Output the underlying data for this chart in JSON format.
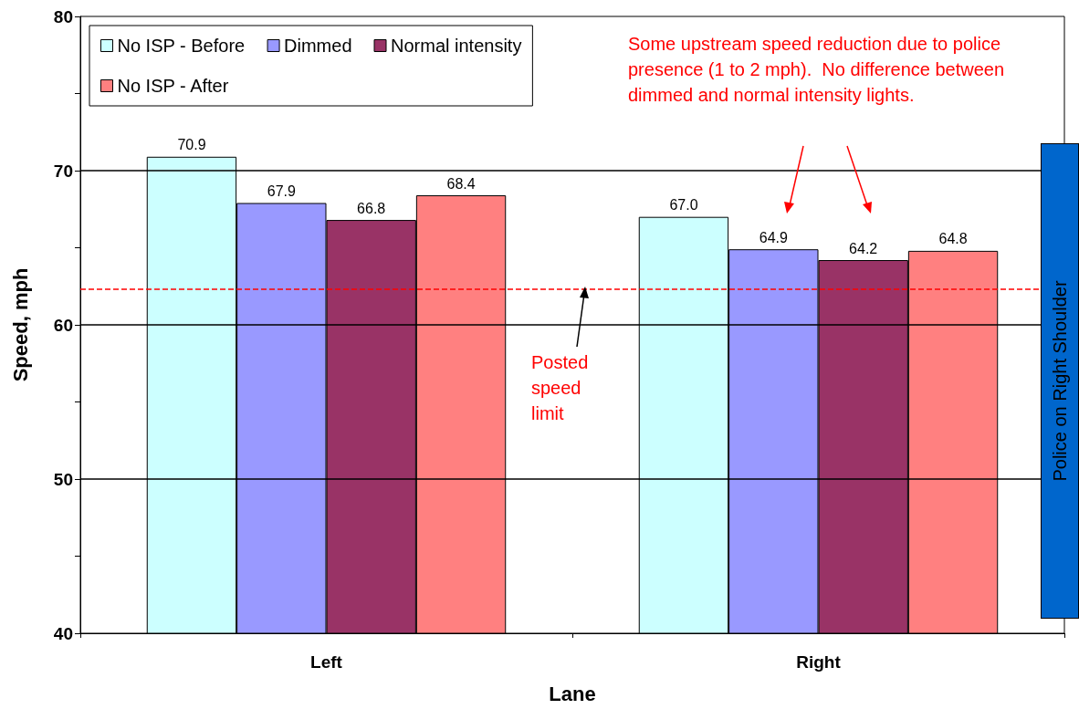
{
  "chart_data": {
    "type": "bar",
    "xlabel": "Lane",
    "ylabel": "Speed, mph",
    "categories": [
      "Left",
      "Right"
    ],
    "series": [
      {
        "name": "No ISP - Before",
        "color": "#ccffff",
        "values": [
          70.9,
          67.0
        ],
        "value_labels": [
          "70.9",
          "67.0"
        ]
      },
      {
        "name": "Dimmed",
        "color": "#9999ff",
        "values": [
          67.9,
          64.9
        ],
        "value_labels": [
          "67.9",
          "64.9"
        ]
      },
      {
        "name": "Normal intensity",
        "color": "#993366",
        "values": [
          66.8,
          64.2
        ],
        "value_labels": [
          "66.8",
          "64.2"
        ]
      },
      {
        "name": "No ISP - After",
        "color": "#ff8080",
        "values": [
          68.4,
          64.8
        ],
        "value_labels": [
          "68.4",
          "64.8"
        ]
      }
    ],
    "ylim": [
      40,
      80
    ],
    "yticks": [
      40,
      {
        "value": 45,
        "label": null
      },
      50,
      {
        "value": 55,
        "label": null
      },
      60,
      {
        "value": 65,
        "label": null
      },
      70,
      {
        "value": 75,
        "label": null
      },
      80
    ],
    "grid": "y",
    "legend": "top left",
    "ref_lines": [
      {
        "axis": "y",
        "value": 62.3,
        "label": "Posted speed limit",
        "color": "#ff0000",
        "line_style": "dashed"
      }
    ],
    "annotations": [
      "Some upstream speed reduction due to police presence (1 to 2 mph).  No difference between dimmed and normal intensity lights.",
      "Police on Right Shoulder"
    ]
  }
}
